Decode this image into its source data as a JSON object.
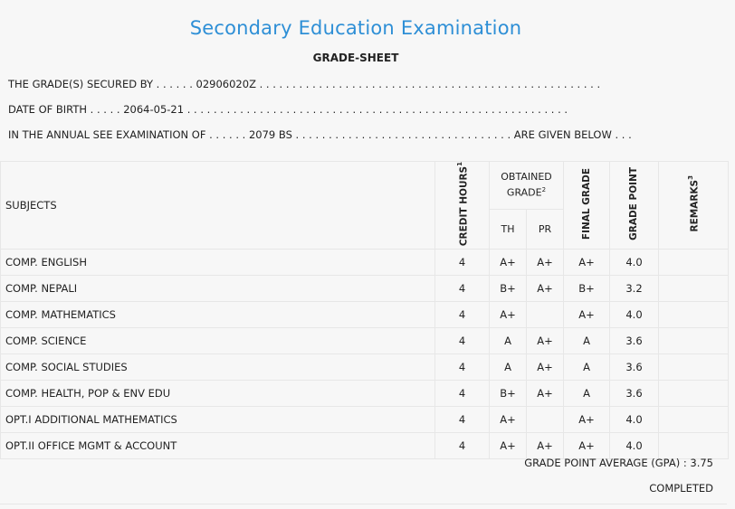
{
  "header": {
    "title": "Secondary Education Examination",
    "subtitle": "GRADE-SHEET"
  },
  "info": {
    "secured_by": "THE GRADE(S) SECURED BY . . . . . . 02906020Z . . . . . . . . . . . . . . . . . . . . . . . . . . . . . . . . . . . . . . . . . . . . . . . . . . . .",
    "dob": "DATE OF BIRTH . . . . . 2064-05-21 . . . . . . . . . . . . . . . . . . . . . . . . . . . . . . . . . . . . . . . . . . . . . . . . . . . . . . . . . .",
    "exam": "IN THE ANNUAL SEE EXAMINATION OF . . . . . . 2079 BS . . . . . . . . . . . . . . . . . . . . . . . . . . . . . . . . . ARE GIVEN BELOW . . ."
  },
  "table": {
    "headers": {
      "subjects": "SUBJECTS",
      "credit_hours": "CREDIT HOURS",
      "credit_sup": "1",
      "obtained_grade": "OBTAINED GRADE",
      "obtained_sup": "2",
      "th": "TH",
      "pr": "PR",
      "final_grade": "FINAL GRADE",
      "grade_point": "GRADE POINT",
      "remarks": "REMARKS",
      "remarks_sup": "3"
    },
    "rows": [
      {
        "subject": "COMP. ENGLISH",
        "credit": "4",
        "th": "A+",
        "pr": "A+",
        "final": "A+",
        "gp": "4.0",
        "remarks": ""
      },
      {
        "subject": "COMP. NEPALI",
        "credit": "4",
        "th": "B+",
        "pr": "A+",
        "final": "B+",
        "gp": "3.2",
        "remarks": ""
      },
      {
        "subject": "COMP. MATHEMATICS",
        "credit": "4",
        "th": "A+",
        "pr": "",
        "final": "A+",
        "gp": "4.0",
        "remarks": ""
      },
      {
        "subject": "COMP. SCIENCE",
        "credit": "4",
        "th": "A",
        "pr": "A+",
        "final": "A",
        "gp": "3.6",
        "remarks": ""
      },
      {
        "subject": "COMP. SOCIAL STUDIES",
        "credit": "4",
        "th": "A",
        "pr": "A+",
        "final": "A",
        "gp": "3.6",
        "remarks": ""
      },
      {
        "subject": "COMP. HEALTH, POP & ENV EDU",
        "credit": "4",
        "th": "B+",
        "pr": "A+",
        "final": "A",
        "gp": "3.6",
        "remarks": ""
      },
      {
        "subject": "OPT.I ADDITIONAL MATHEMATICS",
        "credit": "4",
        "th": "A+",
        "pr": "",
        "final": "A+",
        "gp": "4.0",
        "remarks": ""
      },
      {
        "subject": "OPT.II OFFICE MGMT & ACCOUNT",
        "credit": "4",
        "th": "A+",
        "pr": "A+",
        "final": "A+",
        "gp": "4.0",
        "remarks": ""
      }
    ]
  },
  "footer": {
    "gpa": "GRADE POINT AVERAGE (GPA) : 3.75",
    "status": "COMPLETED"
  },
  "colors": {
    "title": "#2e8fd6",
    "background": "#f7f7f7",
    "border": "#e7e7e7"
  }
}
